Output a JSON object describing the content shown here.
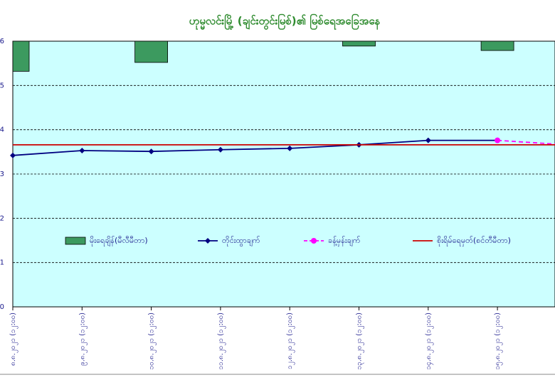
{
  "chart_data": {
    "type": "combo",
    "title": "ဟုမ္မလင်းမြို့ (ချင်းတွင်းမြစ်)၏ မြစ်ရေအခြေအနေ",
    "categories": [
      "၈.၈.၂၀၂၁ (၁၂:၀၀)",
      "၉.၈.၂၀၂၁ (၁၂:၀၀)",
      "၁၀.၈.၂၀၂၁ (၁၂:၀၀)",
      "၁၁.၈.၂၀၂၁ (၁၂:၀၀)",
      "၁၂.၈.၂၀၂၁ (၁၂:၀၀)",
      "၁၃.၈.၂၀၂၁ (၁၂:၀၀)",
      "၁၄.၈.၂၀၂၁ (၁၂:၀၀)",
      "၁၅.၈.၂၀၂၁ (၁၂:၀၀)",
      null
    ],
    "series": [
      {
        "name": "မိုးရေချိန်(မီလီမီတာ)",
        "kind": "bar",
        "axis": "y2",
        "color": "#3c9a5f",
        "values": [
          0.68,
          0,
          0.48,
          0,
          0,
          0.11,
          0,
          0.21,
          null
        ]
      },
      {
        "name": "တိုင်းထွာချက်",
        "kind": "line",
        "color": "#000080",
        "marker": "diamond",
        "values": [
          3.42,
          3.53,
          3.51,
          3.55,
          3.58,
          3.66,
          3.76,
          3.76,
          null
        ]
      },
      {
        "name": "ခန့်မှန်းချက်",
        "kind": "line",
        "dashed": true,
        "color": "#ff00ff",
        "marker": "circle",
        "values": [
          null,
          null,
          null,
          null,
          null,
          null,
          null,
          3.76,
          3.66
        ]
      },
      {
        "name": "စိုးရိမ်ရေမှတ်(စင်တီမီတာ)",
        "kind": "line",
        "color": "#cc0000",
        "values": [
          3.66,
          3.66,
          3.66,
          3.66,
          3.66,
          3.66,
          3.66,
          3.66,
          3.66
        ]
      }
    ],
    "ylim": [
      0,
      6
    ],
    "yticks": [
      0,
      1,
      2,
      3,
      4,
      5,
      6
    ],
    "y2lim": [
      0,
      6
    ],
    "y2_inverted": true,
    "grid": true
  }
}
